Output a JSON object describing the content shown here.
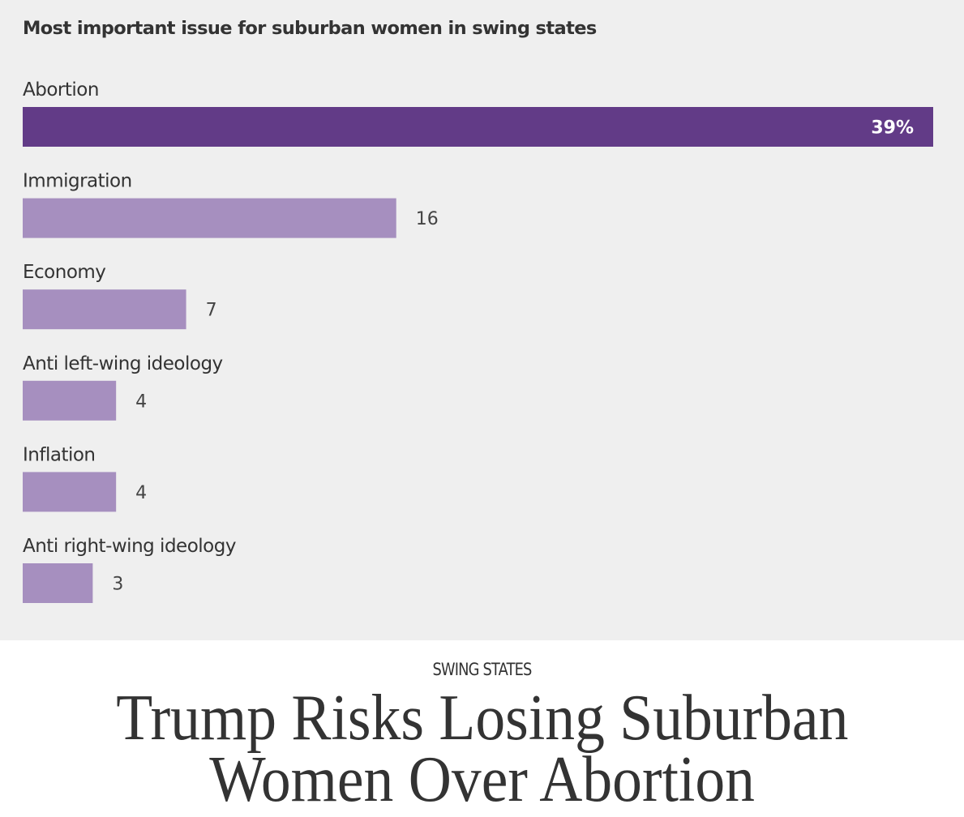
{
  "colors": {
    "highlight_bar": "#623b87",
    "bar": "#a68fbf",
    "panel_background": "#efefef"
  },
  "chart_data": {
    "type": "bar",
    "orientation": "horizontal",
    "title": "Most important issue for suburban women in swing states",
    "xlabel": "",
    "ylabel": "",
    "xlim": [
      0,
      39
    ],
    "grid": false,
    "unit": "%",
    "categories": [
      "Abortion",
      "Immigration",
      "Economy",
      "Anti left-wing ideology",
      "Inflation",
      "Anti right-wing ideology"
    ],
    "values": [
      39,
      16,
      7,
      4,
      4,
      3
    ],
    "value_labels": [
      "39%",
      "16",
      "7",
      "4",
      "4",
      "3"
    ],
    "highlighted": [
      true,
      false,
      false,
      false,
      false,
      false
    ]
  },
  "article": {
    "kicker": "SWING STATES",
    "headline_line1": "Trump Risks Losing Suburban",
    "headline_line2": "Women Over Abortion"
  }
}
